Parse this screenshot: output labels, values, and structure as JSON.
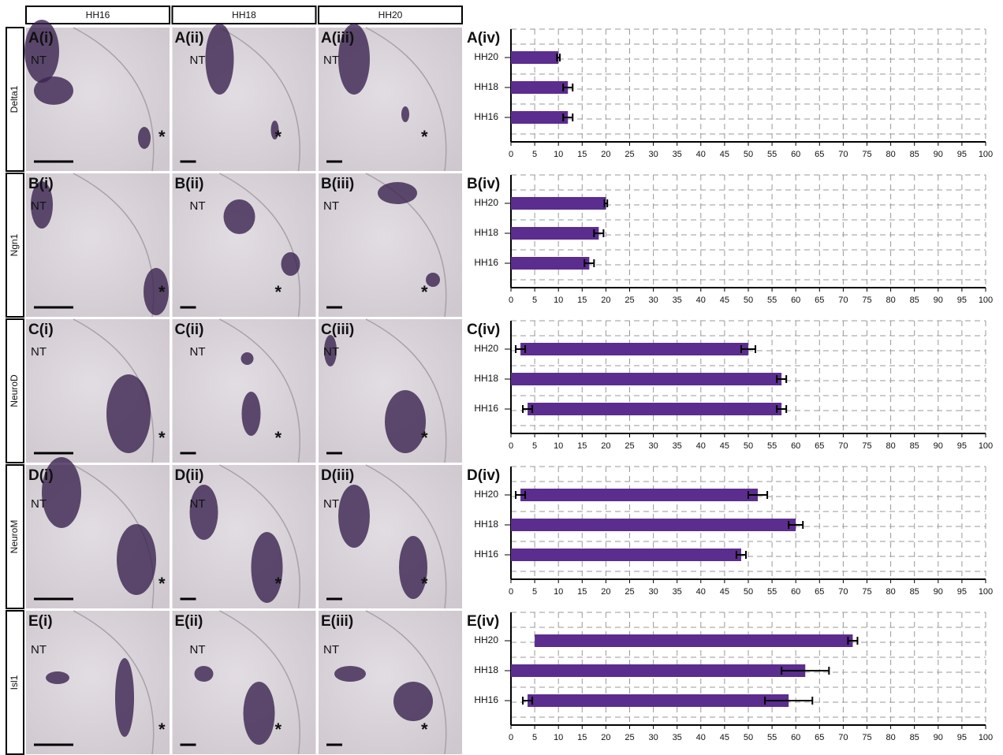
{
  "figure": {
    "columns": [
      "HH16",
      "HH18",
      "HH20"
    ],
    "rows": [
      "Delta1",
      "Ngn1",
      "NeuroD",
      "NeuroM",
      "Isl1"
    ],
    "panels": [
      [
        "A(i)",
        "A(ii)",
        "A(iii)"
      ],
      [
        "B(i)",
        "B(ii)",
        "B(iii)"
      ],
      [
        "C(i)",
        "C(ii)",
        "C(iii)"
      ],
      [
        "D(i)",
        "D(ii)",
        "D(iii)"
      ],
      [
        "E(i)",
        "E(ii)",
        "E(iii)"
      ]
    ],
    "region_label": "NT",
    "marker": "*"
  },
  "chart_data": [
    {
      "type": "bar",
      "title": "A(iv)",
      "categories": [
        "HH20",
        "HH18",
        "HH16"
      ],
      "color": "#5b2d8e",
      "bases": [
        0,
        0,
        0
      ],
      "base_errors": [
        null,
        null,
        null
      ],
      "values": [
        10,
        12,
        12
      ],
      "errors": [
        0.3,
        1,
        1
      ],
      "xlim": [
        0,
        100
      ],
      "xticks": [
        0,
        5,
        10,
        15,
        20,
        25,
        30,
        35,
        40,
        45,
        50,
        55,
        60,
        65,
        70,
        75,
        80,
        85,
        90,
        95,
        100
      ],
      "grid": true
    },
    {
      "type": "bar",
      "title": "B(iv)",
      "categories": [
        "HH20",
        "HH18",
        "HH16"
      ],
      "color": "#5b2d8e",
      "bases": [
        0,
        0,
        0
      ],
      "base_errors": [
        null,
        null,
        null
      ],
      "values": [
        20,
        18.5,
        16.5
      ],
      "errors": [
        0.3,
        1,
        1
      ],
      "xlim": [
        0,
        100
      ],
      "xticks": [
        0,
        5,
        10,
        15,
        20,
        25,
        30,
        35,
        40,
        45,
        50,
        55,
        60,
        65,
        70,
        75,
        80,
        85,
        90,
        95,
        100
      ],
      "grid": true
    },
    {
      "type": "bar",
      "title": "C(iv)",
      "categories": [
        "HH20",
        "HH18",
        "HH16"
      ],
      "color": "#5b2d8e",
      "bases": [
        2,
        0,
        3.5
      ],
      "base_errors": [
        1,
        null,
        1
      ],
      "values": [
        50,
        57,
        57
      ],
      "errors": [
        1.5,
        1,
        1
      ],
      "xlim": [
        0,
        100
      ],
      "xticks": [
        0,
        5,
        10,
        15,
        20,
        25,
        30,
        35,
        40,
        45,
        50,
        55,
        60,
        65,
        70,
        75,
        80,
        85,
        90,
        95,
        100
      ],
      "grid": true
    },
    {
      "type": "bar",
      "title": "D(iv)",
      "categories": [
        "HH20",
        "HH18",
        "HH16"
      ],
      "color": "#5b2d8e",
      "bases": [
        2,
        0,
        0
      ],
      "base_errors": [
        1,
        null,
        null
      ],
      "values": [
        52,
        60,
        48.5
      ],
      "errors": [
        2,
        1.5,
        1
      ],
      "xlim": [
        0,
        100
      ],
      "xticks": [
        0,
        5,
        10,
        15,
        20,
        25,
        30,
        35,
        40,
        45,
        50,
        55,
        60,
        65,
        70,
        75,
        80,
        85,
        90,
        95,
        100
      ],
      "grid": true
    },
    {
      "type": "bar",
      "title": "E(iv)",
      "categories": [
        "HH20",
        "HH18",
        "HH16"
      ],
      "color": "#5b2d8e",
      "bases": [
        5,
        0,
        3.5
      ],
      "base_errors": [
        null,
        null,
        1
      ],
      "values": [
        72,
        62,
        58.5
      ],
      "errors": [
        1,
        5,
        5
      ],
      "xlim": [
        0,
        100
      ],
      "xticks": [
        0,
        5,
        10,
        15,
        20,
        25,
        30,
        35,
        40,
        45,
        50,
        55,
        60,
        65,
        70,
        75,
        80,
        85,
        90,
        95,
        100
      ],
      "grid": true
    }
  ]
}
